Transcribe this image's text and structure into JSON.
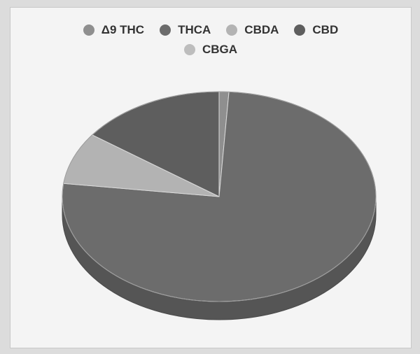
{
  "chart_data": {
    "type": "pie",
    "title": "",
    "legend_placement": "top",
    "three_d": true,
    "categories": [
      "Δ9 THC",
      "THCA",
      "CBDA",
      "CBD",
      "CBGA"
    ],
    "values": [
      1,
      76,
      8,
      15,
      0
    ],
    "colors": [
      "#8f8f8f",
      "#6c6c6c",
      "#b3b3b3",
      "#5e5e5e",
      "#bdbdbd"
    ],
    "side_color": "#555555"
  }
}
